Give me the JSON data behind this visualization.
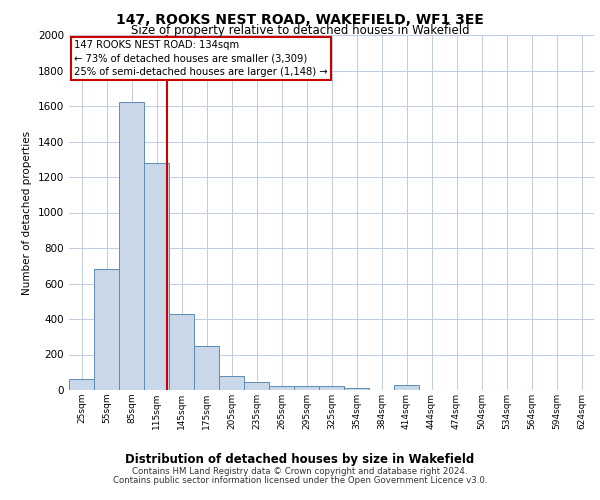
{
  "title": "147, ROOKS NEST ROAD, WAKEFIELD, WF1 3EE",
  "subtitle": "Size of property relative to detached houses in Wakefield",
  "xlabel": "Distribution of detached houses by size in Wakefield",
  "ylabel": "Number of detached properties",
  "bar_labels": [
    "25sqm",
    "55sqm",
    "85sqm",
    "115sqm",
    "145sqm",
    "175sqm",
    "205sqm",
    "235sqm",
    "265sqm",
    "295sqm",
    "325sqm",
    "354sqm",
    "384sqm",
    "414sqm",
    "444sqm",
    "474sqm",
    "504sqm",
    "534sqm",
    "564sqm",
    "594sqm",
    "624sqm"
  ],
  "bar_values": [
    60,
    680,
    1620,
    1280,
    430,
    250,
    80,
    45,
    25,
    20,
    20,
    10,
    0,
    30,
    0,
    0,
    0,
    0,
    0,
    0,
    0
  ],
  "bar_color": "#c8d8e8",
  "bar_edge_color": "#5b8db8",
  "vline_color": "#cc0000",
  "annotation_text": "147 ROOKS NEST ROAD: 134sqm\n← 73% of detached houses are smaller (3,309)\n25% of semi-detached houses are larger (1,148) →",
  "annotation_box_color": "#ffffff",
  "annotation_box_edge": "#cc0000",
  "ylim": [
    0,
    2000
  ],
  "yticks": [
    0,
    200,
    400,
    600,
    800,
    1000,
    1200,
    1400,
    1600,
    1800,
    2000
  ],
  "footer1": "Contains HM Land Registry data © Crown copyright and database right 2024.",
  "footer2": "Contains public sector information licensed under the Open Government Licence v3.0.",
  "bg_color": "#ffffff",
  "grid_color": "#c0cce0"
}
